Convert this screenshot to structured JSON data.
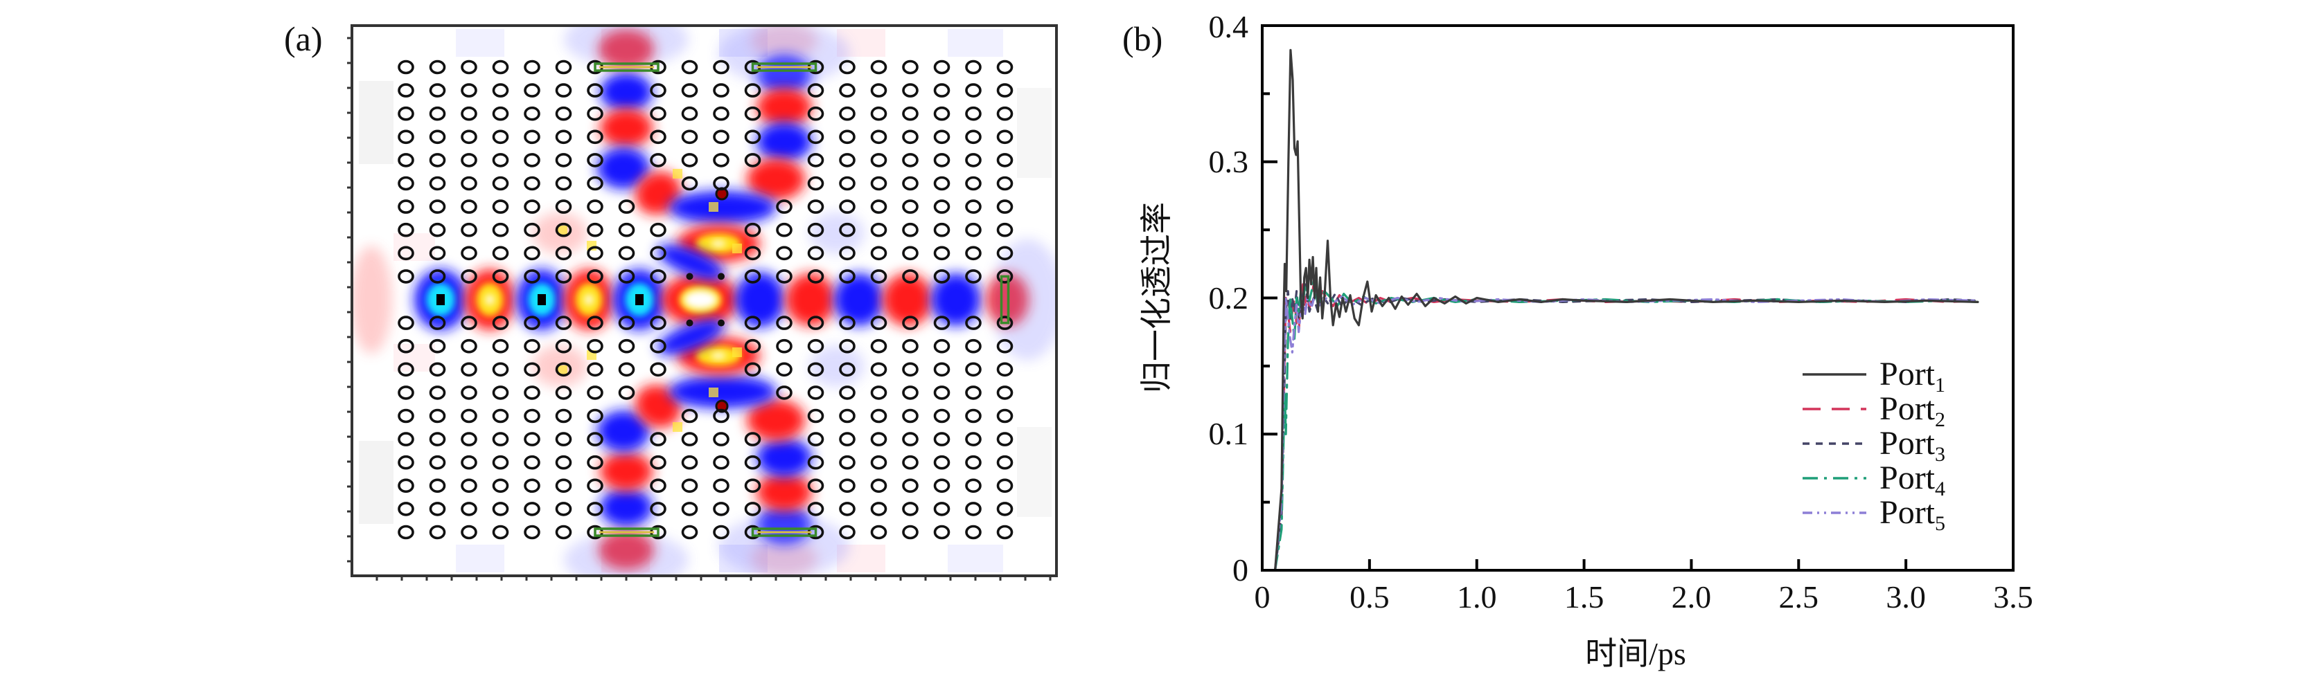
{
  "panel_a": {
    "label": "(a)",
    "frame_color": "#333333",
    "rod_color": "#111111",
    "field_colors": {
      "positive": "#ff1a1a",
      "negative": "#1414ff",
      "positive_core": "#ffe21a",
      "negative_core": "#19e3ff",
      "port": "#3a8a2a"
    }
  },
  "panel_b": {
    "label": "(b)"
  },
  "chart_data": {
    "type": "line",
    "title": "",
    "xlabel": "时间/ps",
    "ylabel": "归一化透过率",
    "xlim": [
      0,
      3.5
    ],
    "ylim": [
      0,
      0.4
    ],
    "xticks": [
      0,
      0.5,
      1.0,
      1.5,
      2.0,
      2.5,
      3.0,
      3.5
    ],
    "xtick_labels": [
      "0",
      "0.5",
      "1.0",
      "1.5",
      "2.0",
      "2.5",
      "3.0",
      "3.5"
    ],
    "yticks": [
      0,
      0.1,
      0.2,
      0.3,
      0.4
    ],
    "ytick_labels": [
      "0",
      "0.1",
      "0.2",
      "0.3",
      "0.4"
    ],
    "y_minor_ticks": [
      0.05,
      0.15,
      0.25,
      0.35
    ],
    "grid": false,
    "legend_position": "lower-right",
    "series": [
      {
        "name": "Port",
        "subscript": "1",
        "color": "#3a3a3a",
        "dash": "solid",
        "points": [
          [
            0.06,
            0
          ],
          [
            0.09,
            0.06
          ],
          [
            0.1,
            0.19
          ],
          [
            0.105,
            0.225
          ],
          [
            0.112,
            0.205
          ],
          [
            0.122,
            0.3
          ],
          [
            0.132,
            0.382
          ],
          [
            0.142,
            0.36
          ],
          [
            0.15,
            0.31
          ],
          [
            0.158,
            0.305
          ],
          [
            0.165,
            0.315
          ],
          [
            0.172,
            0.26
          ],
          [
            0.18,
            0.2
          ],
          [
            0.188,
            0.185
          ],
          [
            0.196,
            0.215
          ],
          [
            0.204,
            0.222
          ],
          [
            0.212,
            0.2
          ],
          [
            0.22,
            0.228
          ],
          [
            0.228,
            0.21
          ],
          [
            0.236,
            0.23
          ],
          [
            0.244,
            0.2
          ],
          [
            0.252,
            0.222
          ],
          [
            0.26,
            0.19
          ],
          [
            0.27,
            0.215
          ],
          [
            0.28,
            0.185
          ],
          [
            0.292,
            0.205
          ],
          [
            0.305,
            0.242
          ],
          [
            0.318,
            0.2
          ],
          [
            0.33,
            0.18
          ],
          [
            0.345,
            0.196
          ],
          [
            0.36,
            0.186
          ],
          [
            0.375,
            0.2
          ],
          [
            0.39,
            0.19
          ],
          [
            0.41,
            0.202
          ],
          [
            0.43,
            0.185
          ],
          [
            0.45,
            0.18
          ],
          [
            0.47,
            0.2
          ],
          [
            0.49,
            0.212
          ],
          [
            0.51,
            0.19
          ],
          [
            0.53,
            0.202
          ],
          [
            0.56,
            0.194
          ],
          [
            0.59,
            0.2
          ],
          [
            0.62,
            0.192
          ],
          [
            0.65,
            0.201
          ],
          [
            0.68,
            0.195
          ],
          [
            0.72,
            0.203
          ],
          [
            0.76,
            0.194
          ],
          [
            0.8,
            0.2
          ],
          [
            0.85,
            0.196
          ],
          [
            0.9,
            0.201
          ],
          [
            0.95,
            0.196
          ],
          [
            1.0,
            0.2
          ],
          [
            1.1,
            0.197
          ],
          [
            1.2,
            0.199
          ],
          [
            1.3,
            0.197
          ],
          [
            1.4,
            0.199
          ],
          [
            1.5,
            0.198
          ],
          [
            1.7,
            0.197
          ],
          [
            1.9,
            0.199
          ],
          [
            2.1,
            0.197
          ],
          [
            2.3,
            0.198
          ],
          [
            2.5,
            0.197
          ],
          [
            2.7,
            0.198
          ],
          [
            2.9,
            0.197
          ],
          [
            3.1,
            0.198
          ],
          [
            3.335,
            0.197
          ]
        ]
      },
      {
        "name": "Port",
        "subscript": "2",
        "color": "#d3345a",
        "dash": "long-dash",
        "points": [
          [
            0.06,
            0
          ],
          [
            0.09,
            0.05
          ],
          [
            0.1,
            0.12
          ],
          [
            0.11,
            0.2
          ],
          [
            0.12,
            0.19
          ],
          [
            0.13,
            0.175
          ],
          [
            0.14,
            0.19
          ],
          [
            0.15,
            0.2
          ],
          [
            0.16,
            0.18
          ],
          [
            0.17,
            0.175
          ],
          [
            0.18,
            0.2
          ],
          [
            0.19,
            0.21
          ],
          [
            0.2,
            0.195
          ],
          [
            0.21,
            0.205
          ],
          [
            0.22,
            0.192
          ],
          [
            0.24,
            0.21
          ],
          [
            0.26,
            0.195
          ],
          [
            0.28,
            0.205
          ],
          [
            0.3,
            0.2
          ],
          [
            0.33,
            0.194
          ],
          [
            0.36,
            0.202
          ],
          [
            0.4,
            0.196
          ],
          [
            0.45,
            0.2
          ],
          [
            0.5,
            0.195
          ],
          [
            0.55,
            0.2
          ],
          [
            0.6,
            0.197
          ],
          [
            0.7,
            0.2
          ],
          [
            0.8,
            0.197
          ],
          [
            0.9,
            0.199
          ],
          [
            1.0,
            0.198
          ],
          [
            1.2,
            0.197
          ],
          [
            1.4,
            0.199
          ],
          [
            1.6,
            0.197
          ],
          [
            1.8,
            0.198
          ],
          [
            2.0,
            0.197
          ],
          [
            2.2,
            0.199
          ],
          [
            2.4,
            0.197
          ],
          [
            2.6,
            0.198
          ],
          [
            2.8,
            0.197
          ],
          [
            3.0,
            0.199
          ],
          [
            3.2,
            0.197
          ],
          [
            3.335,
            0.198
          ]
        ]
      },
      {
        "name": "Port",
        "subscript": "3",
        "color": "#444466",
        "dash": "short-dash",
        "points": [
          [
            0.06,
            0
          ],
          [
            0.09,
            0.04
          ],
          [
            0.1,
            0.11
          ],
          [
            0.11,
            0.19
          ],
          [
            0.12,
            0.205
          ],
          [
            0.13,
            0.185
          ],
          [
            0.14,
            0.2
          ],
          [
            0.15,
            0.19
          ],
          [
            0.16,
            0.205
          ],
          [
            0.17,
            0.185
          ],
          [
            0.18,
            0.195
          ],
          [
            0.2,
            0.21
          ],
          [
            0.22,
            0.19
          ],
          [
            0.24,
            0.2
          ],
          [
            0.26,
            0.19
          ],
          [
            0.28,
            0.202
          ],
          [
            0.31,
            0.195
          ],
          [
            0.34,
            0.203
          ],
          [
            0.37,
            0.194
          ],
          [
            0.41,
            0.2
          ],
          [
            0.46,
            0.195
          ],
          [
            0.52,
            0.2
          ],
          [
            0.58,
            0.196
          ],
          [
            0.65,
            0.2
          ],
          [
            0.75,
            0.197
          ],
          [
            0.85,
            0.199
          ],
          [
            1.0,
            0.197
          ],
          [
            1.2,
            0.199
          ],
          [
            1.4,
            0.197
          ],
          [
            1.6,
            0.198
          ],
          [
            1.8,
            0.199
          ],
          [
            2.0,
            0.197
          ],
          [
            2.2,
            0.198
          ],
          [
            2.4,
            0.199
          ],
          [
            2.6,
            0.197
          ],
          [
            2.8,
            0.198
          ],
          [
            3.0,
            0.197
          ],
          [
            3.2,
            0.199
          ],
          [
            3.335,
            0.198
          ]
        ]
      },
      {
        "name": "Port",
        "subscript": "4",
        "color": "#1f9e78",
        "dash": "dash-dot",
        "points": [
          [
            0.06,
            0
          ],
          [
            0.09,
            0.03
          ],
          [
            0.1,
            0.1
          ],
          [
            0.105,
            0.13
          ],
          [
            0.11,
            0.1
          ],
          [
            0.12,
            0.17
          ],
          [
            0.13,
            0.2
          ],
          [
            0.14,
            0.185
          ],
          [
            0.15,
            0.17
          ],
          [
            0.16,
            0.2
          ],
          [
            0.17,
            0.19
          ],
          [
            0.18,
            0.205
          ],
          [
            0.19,
            0.195
          ],
          [
            0.2,
            0.21
          ],
          [
            0.22,
            0.198
          ],
          [
            0.24,
            0.212
          ],
          [
            0.26,
            0.195
          ],
          [
            0.29,
            0.205
          ],
          [
            0.32,
            0.2
          ],
          [
            0.35,
            0.194
          ],
          [
            0.38,
            0.203
          ],
          [
            0.42,
            0.196
          ],
          [
            0.47,
            0.201
          ],
          [
            0.53,
            0.196
          ],
          [
            0.6,
            0.2
          ],
          [
            0.7,
            0.197
          ],
          [
            0.8,
            0.2
          ],
          [
            0.9,
            0.197
          ],
          [
            1.0,
            0.199
          ],
          [
            1.2,
            0.197
          ],
          [
            1.4,
            0.198
          ],
          [
            1.6,
            0.199
          ],
          [
            1.8,
            0.197
          ],
          [
            2.0,
            0.198
          ],
          [
            2.2,
            0.197
          ],
          [
            2.4,
            0.199
          ],
          [
            2.6,
            0.197
          ],
          [
            2.8,
            0.198
          ],
          [
            3.0,
            0.197
          ],
          [
            3.2,
            0.198
          ],
          [
            3.335,
            0.197
          ]
        ]
      },
      {
        "name": "Port",
        "subscript": "5",
        "color": "#8d7fd6",
        "dash": "dash-dot-dot",
        "points": [
          [
            0.06,
            0
          ],
          [
            0.09,
            0.05
          ],
          [
            0.1,
            0.14
          ],
          [
            0.11,
            0.2
          ],
          [
            0.12,
            0.185
          ],
          [
            0.13,
            0.17
          ],
          [
            0.14,
            0.16
          ],
          [
            0.15,
            0.18
          ],
          [
            0.16,
            0.195
          ],
          [
            0.17,
            0.175
          ],
          [
            0.18,
            0.19
          ],
          [
            0.19,
            0.2
          ],
          [
            0.2,
            0.188
          ],
          [
            0.21,
            0.2
          ],
          [
            0.23,
            0.193
          ],
          [
            0.25,
            0.205
          ],
          [
            0.27,
            0.195
          ],
          [
            0.3,
            0.2
          ],
          [
            0.33,
            0.196
          ],
          [
            0.37,
            0.201
          ],
          [
            0.42,
            0.195
          ],
          [
            0.48,
            0.2
          ],
          [
            0.55,
            0.196
          ],
          [
            0.63,
            0.2
          ],
          [
            0.72,
            0.197
          ],
          [
            0.82,
            0.2
          ],
          [
            0.95,
            0.197
          ],
          [
            1.1,
            0.199
          ],
          [
            1.3,
            0.197
          ],
          [
            1.5,
            0.199
          ],
          [
            1.7,
            0.197
          ],
          [
            1.9,
            0.198
          ],
          [
            2.1,
            0.199
          ],
          [
            2.3,
            0.197
          ],
          [
            2.5,
            0.198
          ],
          [
            2.7,
            0.199
          ],
          [
            2.9,
            0.197
          ],
          [
            3.1,
            0.199
          ],
          [
            3.335,
            0.198
          ]
        ]
      }
    ]
  }
}
